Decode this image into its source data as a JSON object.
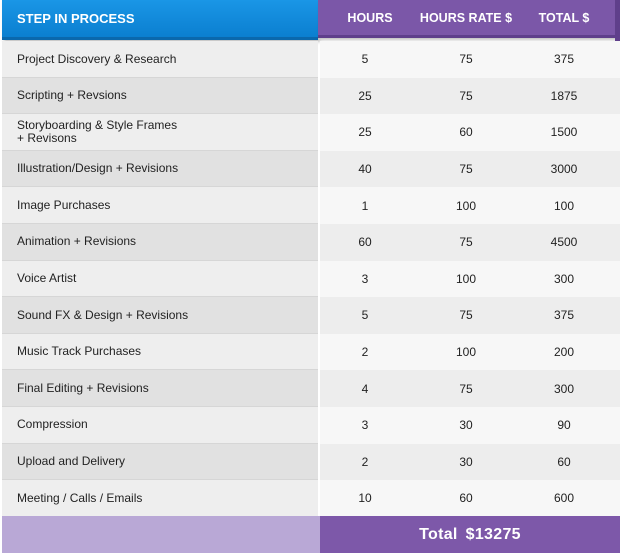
{
  "header": {
    "step_label": "STEP IN PROCESS",
    "hours_label": "HOURS",
    "rate_label": "HOURS RATE $",
    "total_label": "TOTAL $"
  },
  "rows": [
    {
      "step": "Project Discovery & Research",
      "hours": "5",
      "rate": "75",
      "total": "375"
    },
    {
      "step": "Scripting + Revsions",
      "hours": "25",
      "rate": "75",
      "total": "1875"
    },
    {
      "step": "Storyboarding & Style Frames\n+ Revisons",
      "hours": "25",
      "rate": "60",
      "total": "1500"
    },
    {
      "step": "Illustration/Design + Revisions",
      "hours": "40",
      "rate": "75",
      "total": "3000"
    },
    {
      "step": "Image Purchases",
      "hours": "1",
      "rate": "100",
      "total": "100"
    },
    {
      "step": "Animation + Revisions",
      "hours": "60",
      "rate": "75",
      "total": "4500"
    },
    {
      "step": "Voice Artist",
      "hours": "3",
      "rate": "100",
      "total": "300"
    },
    {
      "step": "Sound FX & Design + Revisions",
      "hours": "5",
      "rate": "75",
      "total": "375"
    },
    {
      "step": "Music Track Purchases",
      "hours": "2",
      "rate": "100",
      "total": "200"
    },
    {
      "step": "Final Editing + Revisions",
      "hours": "4",
      "rate": "75",
      "total": "300"
    },
    {
      "step": "Compression",
      "hours": "3",
      "rate": "30",
      "total": "90"
    },
    {
      "step": "Upload and Delivery",
      "hours": "2",
      "rate": "30",
      "total": "60"
    },
    {
      "step": "Meeting / Calls / Emails",
      "hours": "10",
      "rate": "60",
      "total": "600"
    }
  ],
  "footer": {
    "total_label": "Total",
    "total_value": "$13275"
  },
  "colors": {
    "header_blue": "#0b7fd0",
    "header_purple": "#7b57a8",
    "footer_lavender": "#b9a8d6"
  }
}
